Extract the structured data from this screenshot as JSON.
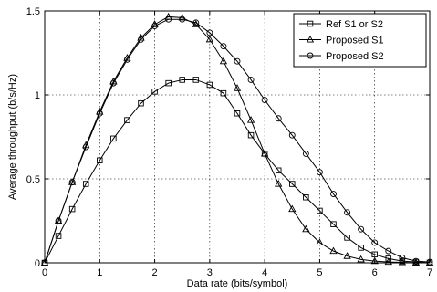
{
  "chart_data": {
    "type": "line",
    "xlabel": "Data rate (bits/symbol)",
    "ylabel": "Average throughput (b/s/Hz)",
    "xlim": [
      0,
      7
    ],
    "ylim": [
      0,
      1.5
    ],
    "xticks": [
      "0",
      "1",
      "2",
      "3",
      "4",
      "5",
      "6",
      "7"
    ],
    "yticks": [
      "0",
      "0.5",
      "1",
      "1.5"
    ],
    "grid": true,
    "legend_position": "top-right",
    "x": [
      0,
      0.25,
      0.5,
      0.75,
      1.0,
      1.25,
      1.5,
      1.75,
      2.0,
      2.25,
      2.5,
      2.75,
      3.0,
      3.25,
      3.5,
      3.75,
      4.0,
      4.25,
      4.5,
      4.75,
      5.0,
      5.25,
      5.5,
      5.75,
      6.0,
      6.25,
      6.5,
      6.75,
      7.0
    ],
    "series": [
      {
        "name": "Ref S1 or S2",
        "marker": "square",
        "values": [
          0.0,
          0.16,
          0.32,
          0.47,
          0.61,
          0.74,
          0.85,
          0.95,
          1.02,
          1.07,
          1.09,
          1.09,
          1.06,
          1.01,
          0.89,
          0.76,
          0.65,
          0.55,
          0.47,
          0.39,
          0.31,
          0.23,
          0.15,
          0.09,
          0.05,
          0.025,
          0.01,
          0.005,
          0.0
        ]
      },
      {
        "name": "Proposed S1",
        "marker": "triangle",
        "values": [
          0.0,
          0.25,
          0.48,
          0.7,
          0.9,
          1.08,
          1.22,
          1.34,
          1.42,
          1.465,
          1.46,
          1.42,
          1.33,
          1.2,
          1.04,
          0.85,
          0.65,
          0.47,
          0.32,
          0.2,
          0.12,
          0.07,
          0.04,
          0.02,
          0.01,
          0.005,
          0.003,
          0.0,
          0.0
        ]
      },
      {
        "name": "Proposed S2",
        "marker": "circle",
        "values": [
          0.0,
          0.25,
          0.48,
          0.69,
          0.89,
          1.07,
          1.21,
          1.33,
          1.41,
          1.45,
          1.45,
          1.43,
          1.37,
          1.29,
          1.2,
          1.09,
          0.97,
          0.86,
          0.76,
          0.65,
          0.54,
          0.41,
          0.3,
          0.2,
          0.12,
          0.07,
          0.03,
          0.01,
          0.005
        ]
      }
    ]
  }
}
